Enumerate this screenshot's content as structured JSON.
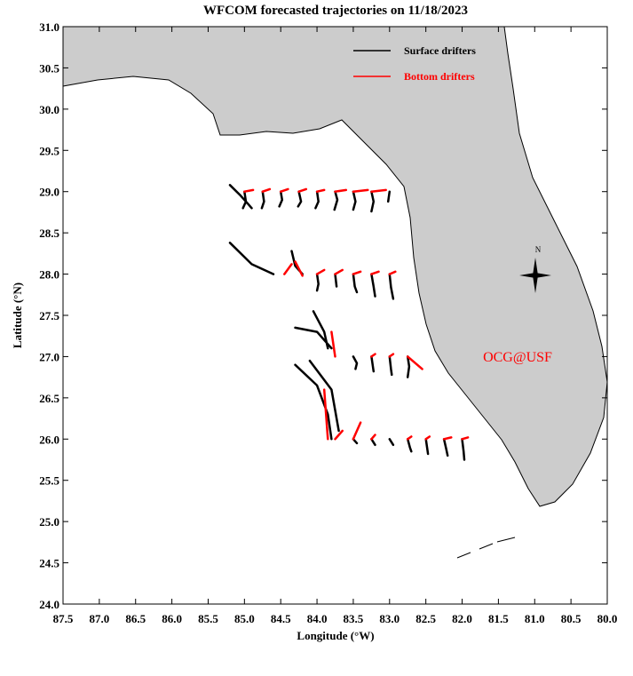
{
  "chart_data": {
    "type": "line",
    "title": "WFCOM forecasted trajectories on 11/18/2023",
    "x_label": "Longitude (°W)",
    "y_label": "Latitude (°N)",
    "annotation": "OCG@USF",
    "compass_label": "N",
    "legend": "upper right",
    "xlim": [
      87.5,
      80.0
    ],
    "ylim": [
      24.0,
      31.0
    ],
    "xticks": [
      87.5,
      {
        "value": 87,
        "label": "87.0"
      },
      86.5,
      {
        "value": 86,
        "label": "86.0"
      },
      85.5,
      {
        "value": 85,
        "label": "85.0"
      },
      84.5,
      {
        "value": 84,
        "label": "84.0"
      },
      83.5,
      {
        "value": 83,
        "label": "83.0"
      },
      82.5,
      {
        "value": 82,
        "label": "82.0"
      },
      81.5,
      {
        "value": 81,
        "label": "81.0"
      },
      80.5,
      {
        "value": 80,
        "label": "80.0"
      }
    ],
    "yticks": [
      {
        "value": 24,
        "label": "24.0"
      },
      24.5,
      {
        "value": 25,
        "label": "25.0"
      },
      25.5,
      {
        "value": 26,
        "label": "26.0"
      },
      26.5,
      {
        "value": 27,
        "label": "27.0"
      },
      27.5,
      {
        "value": 28,
        "label": "28.0"
      },
      28.5,
      {
        "value": 29,
        "label": "29.0"
      },
      29.5,
      {
        "value": 30,
        "label": "30.0"
      },
      30.5,
      {
        "value": 31,
        "label": "31.0"
      }
    ],
    "series": [
      {
        "name": "Surface drifters",
        "color": "#000000",
        "x": [
          85.2,
          85.05,
          84.95,
          84.9,
          null,
          85.0,
          84.98,
          85.02,
          null,
          84.75,
          84.73,
          84.76,
          null,
          84.5,
          84.48,
          84.52,
          null,
          84.25,
          84.22,
          84.26,
          null,
          84.0,
          83.98,
          84.02,
          null,
          83.75,
          83.72,
          83.76,
          null,
          83.5,
          83.47,
          83.5,
          null,
          83.25,
          83.22,
          83.25,
          null,
          83.0,
          83.02,
          null,
          85.2,
          84.9,
          84.6,
          null,
          84.35,
          84.3,
          84.2,
          null,
          84.0,
          83.98,
          84.0,
          null,
          83.75,
          83.73,
          null,
          83.5,
          83.48,
          83.45,
          null,
          83.25,
          83.22,
          83.2,
          null,
          83.0,
          82.98,
          82.95,
          null,
          84.3,
          84.0,
          83.8,
          null,
          84.05,
          83.9,
          83.85,
          null,
          83.5,
          83.45,
          83.47,
          null,
          83.25,
          83.22,
          null,
          83.0,
          82.98,
          82.97,
          null,
          82.75,
          82.73,
          82.75,
          null,
          84.3,
          84.0,
          83.85,
          83.8,
          null,
          84.1,
          83.8,
          83.7,
          null,
          83.5,
          83.45,
          null,
          83.25,
          83.2,
          null,
          83.0,
          82.95,
          null,
          82.75,
          82.72,
          82.7,
          null,
          82.5,
          82.48,
          82.47,
          null,
          82.25,
          82.22,
          82.2,
          null,
          82.0,
          81.98,
          81.97
        ],
        "y": [
          29.08,
          28.95,
          28.85,
          28.8,
          null,
          29.0,
          28.88,
          28.8,
          null,
          29.0,
          28.88,
          28.8,
          null,
          29.0,
          28.9,
          28.82,
          null,
          29.0,
          28.88,
          28.82,
          null,
          29.0,
          28.88,
          28.8,
          null,
          29.0,
          28.9,
          28.78,
          null,
          29.0,
          28.88,
          28.78,
          null,
          29.0,
          28.88,
          28.76,
          null,
          29.0,
          28.88,
          null,
          28.38,
          28.12,
          28.0,
          null,
          28.28,
          28.1,
          28.0,
          null,
          28.0,
          27.88,
          27.8,
          null,
          28.0,
          27.85,
          null,
          28.0,
          27.85,
          27.78,
          null,
          28.0,
          27.85,
          27.73,
          null,
          28.0,
          27.84,
          27.7,
          null,
          27.35,
          27.3,
          27.1,
          null,
          27.55,
          27.3,
          27.1,
          null,
          27.0,
          26.92,
          26.85,
          null,
          27.0,
          26.82,
          null,
          27.0,
          26.85,
          26.78,
          null,
          27.0,
          26.88,
          26.75,
          null,
          26.9,
          26.65,
          26.3,
          26.0,
          null,
          26.95,
          26.6,
          26.1,
          null,
          26.0,
          25.95,
          null,
          26.0,
          25.93,
          null,
          26.0,
          25.93,
          null,
          26.0,
          25.9,
          25.85,
          null,
          26.0,
          25.88,
          25.82,
          null,
          26.0,
          25.88,
          25.8,
          null,
          26.0,
          25.85,
          25.75
        ]
      },
      {
        "name": "Bottom drifters",
        "color": "#ff0000",
        "x": [
          85.0,
          84.88,
          null,
          84.75,
          84.65,
          null,
          84.5,
          84.4,
          null,
          84.25,
          84.15,
          null,
          84.0,
          83.9,
          null,
          83.75,
          83.6,
          null,
          83.5,
          83.3,
          null,
          83.25,
          83.05,
          null,
          84.3,
          84.2,
          null,
          84.45,
          84.35,
          null,
          84.0,
          83.9,
          null,
          83.75,
          83.65,
          null,
          83.5,
          83.4,
          null,
          83.25,
          83.15,
          null,
          83.0,
          82.92,
          null,
          83.8,
          83.75,
          null,
          83.25,
          83.2,
          null,
          83.0,
          82.95,
          null,
          82.75,
          82.55,
          null,
          83.9,
          83.85,
          null,
          83.75,
          83.65,
          null,
          83.5,
          83.4,
          null,
          83.25,
          83.2,
          null,
          82.75,
          82.7,
          null,
          82.5,
          82.45,
          null,
          82.25,
          82.15,
          null,
          82.0,
          81.92
        ],
        "y": [
          29.0,
          29.02,
          null,
          29.0,
          29.03,
          null,
          29.0,
          29.03,
          null,
          29.0,
          29.03,
          null,
          29.0,
          29.02,
          null,
          29.0,
          29.02,
          null,
          29.0,
          29.02,
          null,
          29.0,
          29.02,
          null,
          28.15,
          27.98,
          null,
          28.0,
          28.12,
          null,
          28.0,
          28.05,
          null,
          28.0,
          28.05,
          null,
          28.0,
          28.03,
          null,
          28.0,
          28.03,
          null,
          28.0,
          28.03,
          null,
          27.3,
          27.0,
          null,
          27.0,
          27.03,
          null,
          27.0,
          27.03,
          null,
          27.0,
          26.85,
          null,
          26.6,
          26.0,
          null,
          26.0,
          26.1,
          null,
          26.0,
          26.2,
          null,
          26.0,
          26.05,
          null,
          26.0,
          26.03,
          null,
          26.0,
          26.03,
          null,
          26.0,
          26.02,
          null,
          26.0,
          26.02
        ]
      }
    ]
  }
}
